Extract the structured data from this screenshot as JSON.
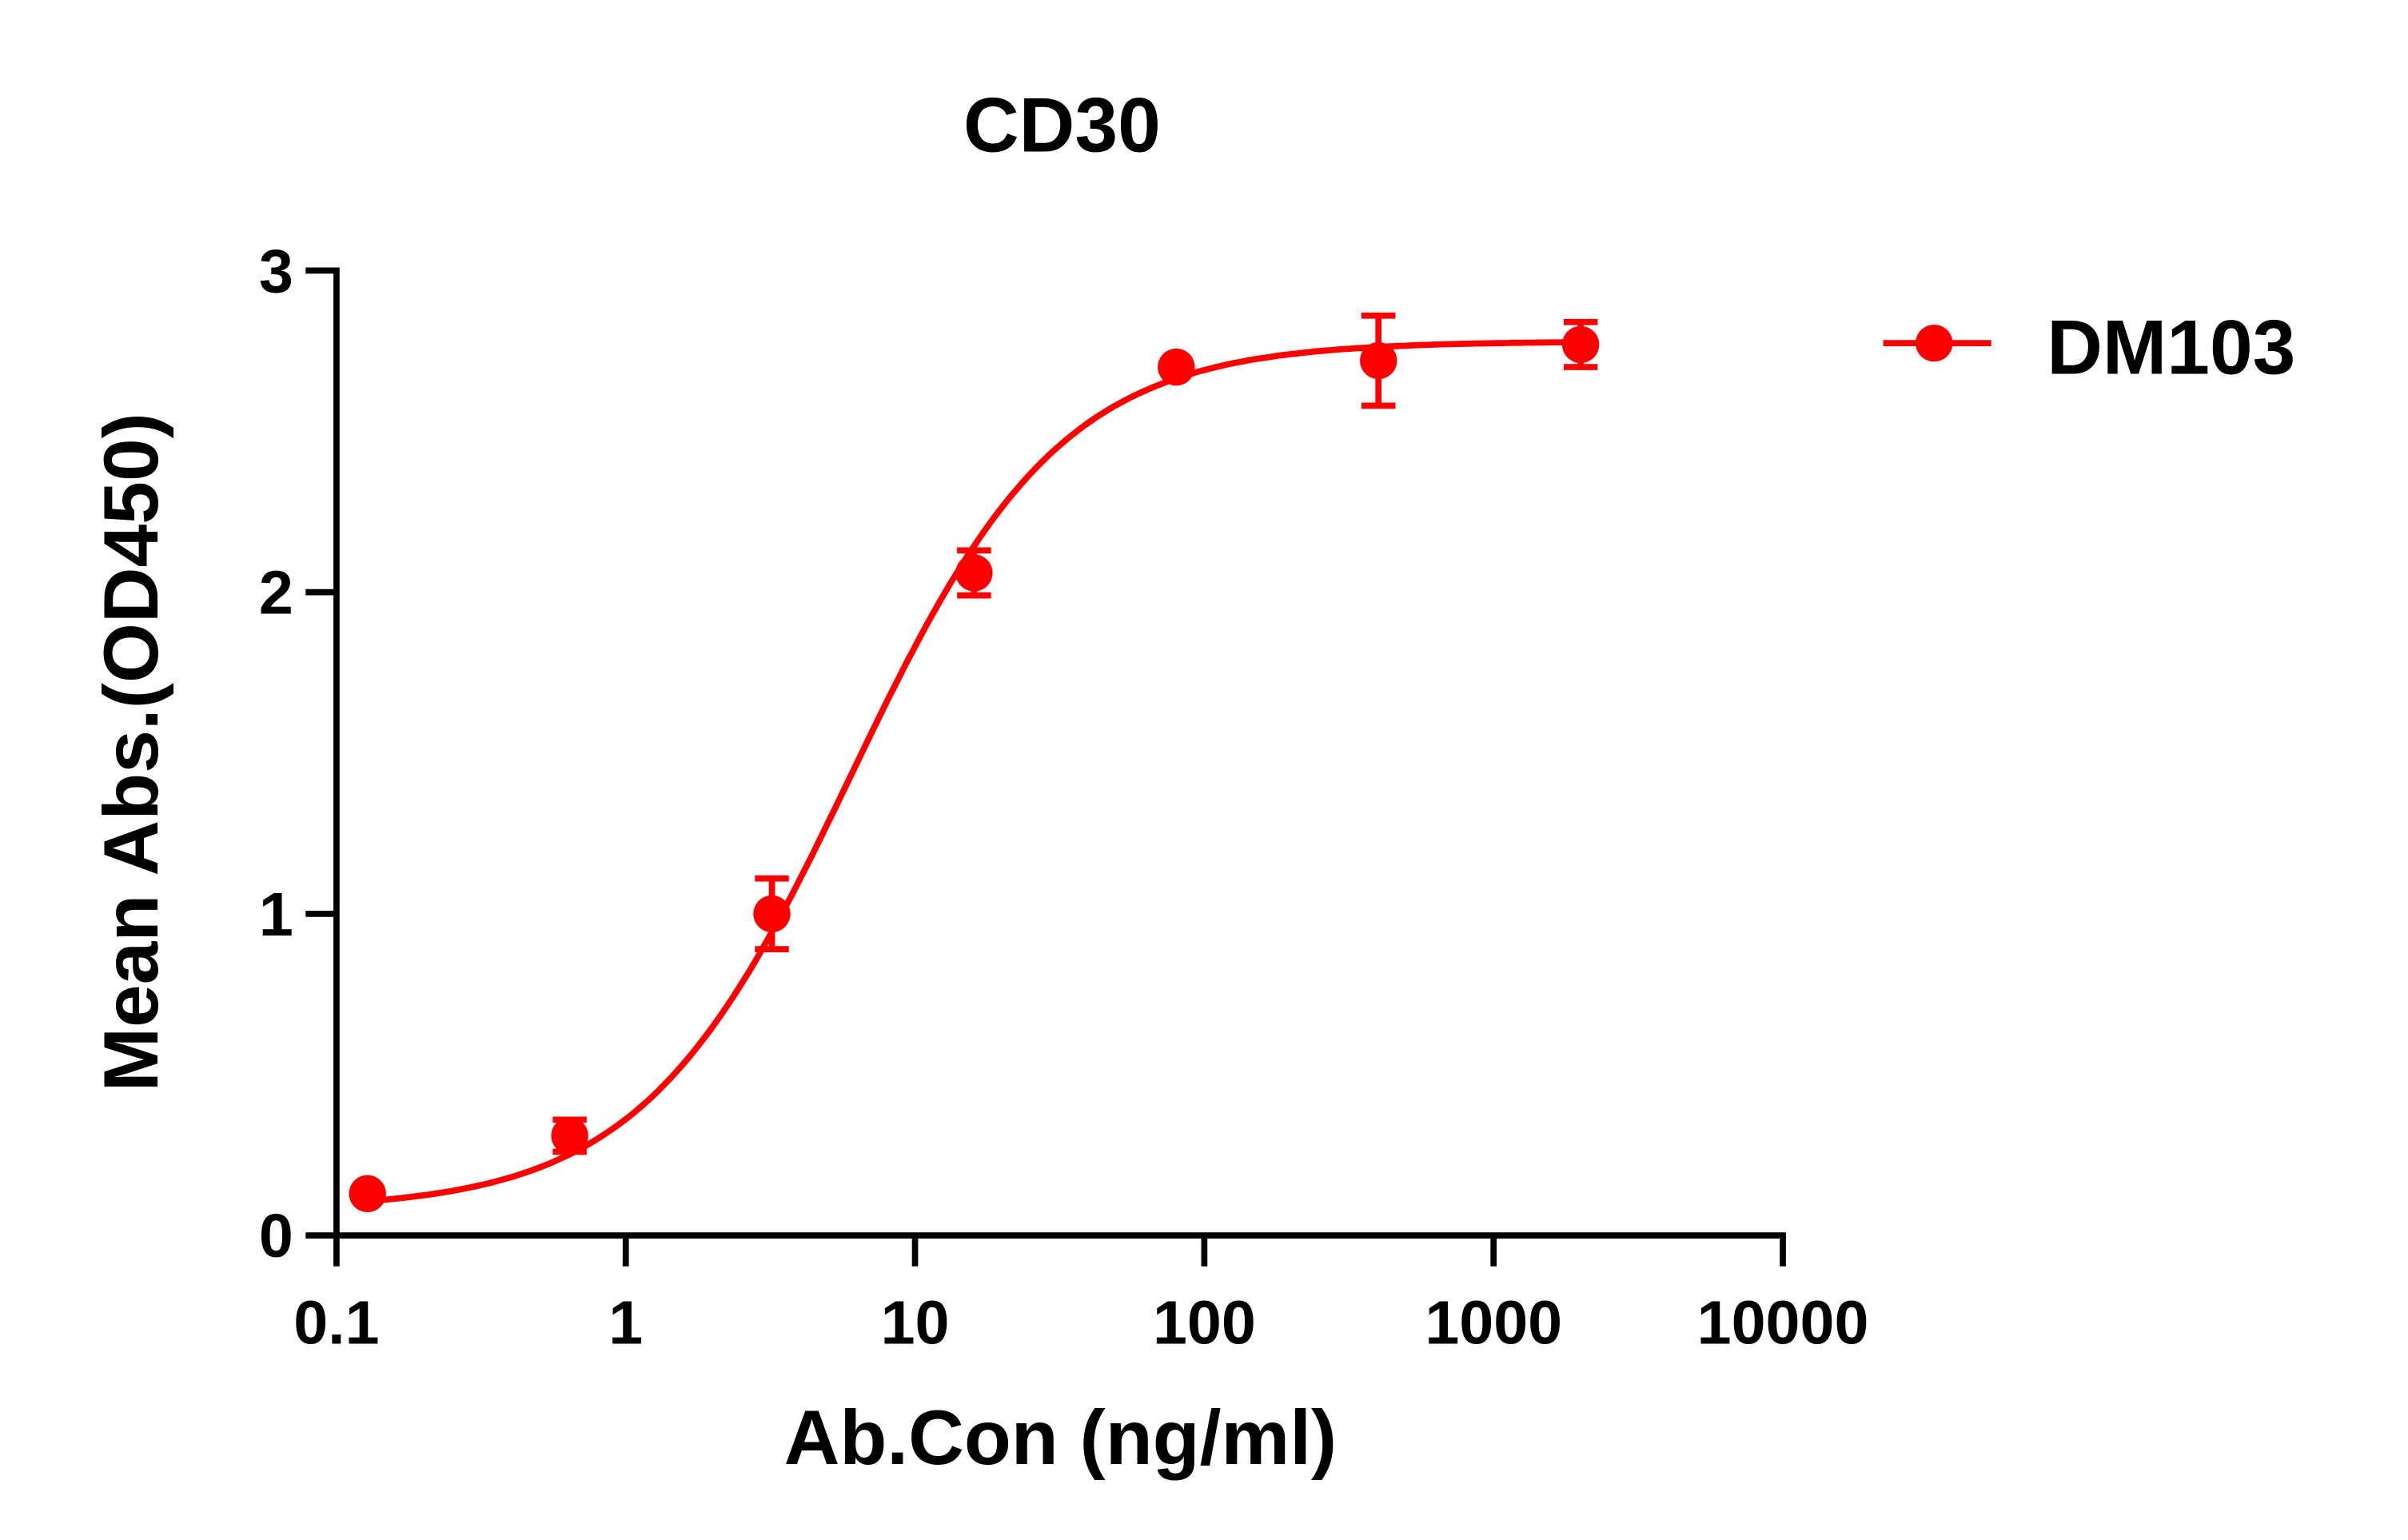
{
  "chart_data": {
    "type": "scatter",
    "title": "CD30",
    "xlabel": "Ab.Con (ng/ml)",
    "ylabel": "Mean Abs.(OD450)",
    "xscale": "log",
    "xlim": [
      0.1,
      10000
    ],
    "ylim": [
      0,
      3
    ],
    "xticks": [
      "0.1",
      "1",
      "10",
      "100",
      "1000",
      "10000"
    ],
    "xtick_values": [
      0.1,
      1,
      10,
      100,
      1000,
      10000
    ],
    "yticks": [
      "0",
      "1",
      "2",
      "3"
    ],
    "ytick_values": [
      0,
      1,
      2,
      3
    ],
    "grid": false,
    "legend_position": "right",
    "series": [
      {
        "name": "DM103",
        "color": "#ff0000",
        "x": [
          0.128,
          0.64,
          3.2,
          16,
          80,
          400,
          2000
        ],
        "y": [
          0.13,
          0.31,
          1.0,
          2.06,
          2.7,
          2.72,
          2.77
        ],
        "error": [
          0.02,
          0.05,
          0.11,
          0.07,
          0.02,
          0.14,
          0.07
        ],
        "fit": "sigmoidal curve"
      }
    ]
  }
}
